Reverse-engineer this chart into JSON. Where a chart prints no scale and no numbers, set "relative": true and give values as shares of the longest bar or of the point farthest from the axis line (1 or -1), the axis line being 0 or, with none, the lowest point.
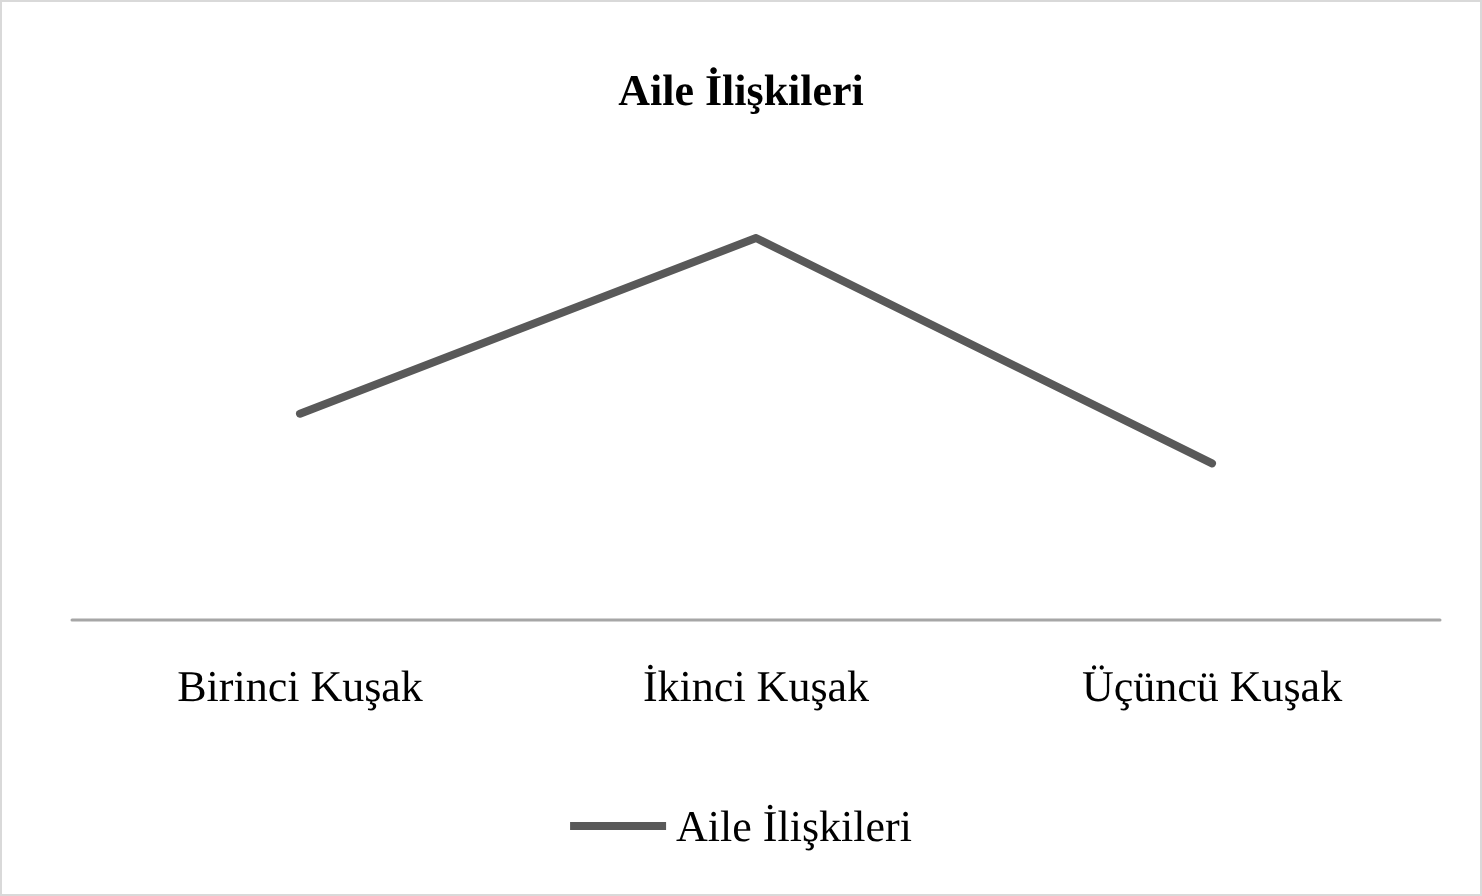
{
  "chart_data": {
    "type": "line",
    "title": "Aile İlişkileri",
    "relative": true,
    "categories": [
      "Birinci Kuşak",
      "İkinci Kuşak",
      "Üçüncü Kuşak"
    ],
    "series": [
      {
        "name": "Aile İlişkileri",
        "color": "#595959",
        "values": [
          0.54,
          1,
          0.41
        ]
      }
    ],
    "legend": "bottom",
    "marker": "none",
    "grid": false
  }
}
